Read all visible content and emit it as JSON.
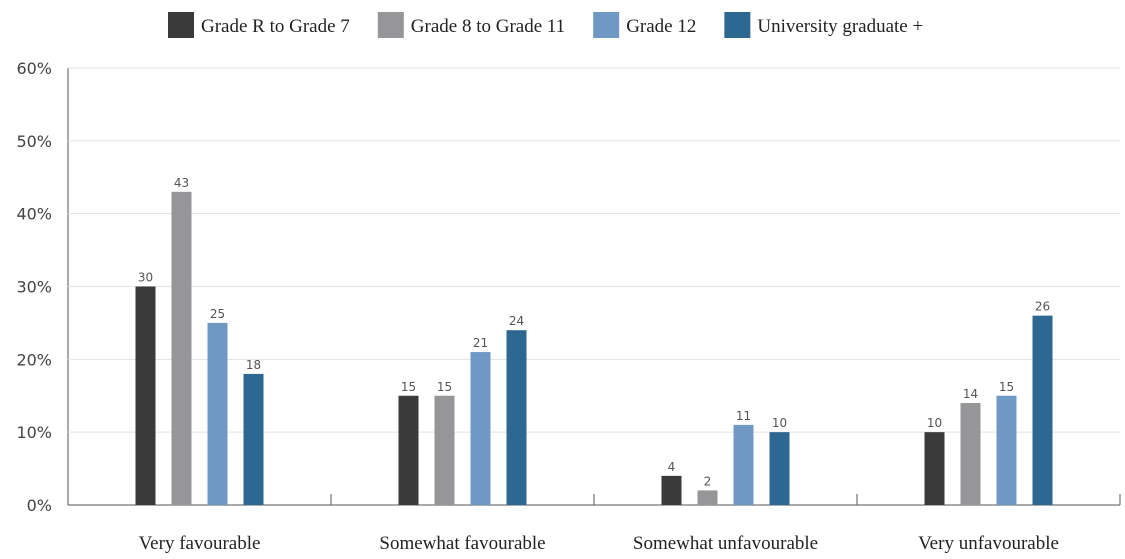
{
  "chart_data": {
    "type": "bar",
    "categories": [
      "Very favourable",
      "Somewhat favourable",
      "Somewhat unfavourable",
      "Very unfavourable"
    ],
    "series": [
      {
        "name": "Grade R to Grade 7",
        "color": "#3a3a3a",
        "values": [
          30,
          15,
          4,
          10
        ]
      },
      {
        "name": "Grade 8 to Grade 11",
        "color": "#969597",
        "values": [
          43,
          15,
          2,
          14
        ]
      },
      {
        "name": "Grade 12",
        "color": "#6f98c5",
        "values": [
          25,
          21,
          11,
          15
        ]
      },
      {
        "name": "University graduate +",
        "color": "#2d6892",
        "values": [
          18,
          24,
          10,
          26
        ]
      }
    ],
    "ylim": [
      0,
      60
    ],
    "yticks": [
      {
        "value": 0,
        "label": "0%"
      },
      {
        "value": 10,
        "label": "10%"
      },
      {
        "value": 20,
        "label": "20%"
      },
      {
        "value": 30,
        "label": "30%"
      },
      {
        "value": 40,
        "label": "40%"
      },
      {
        "value": 50,
        "label": "50%"
      },
      {
        "value": 60,
        "label": "60%"
      }
    ],
    "grid": true,
    "legend": "top"
  }
}
